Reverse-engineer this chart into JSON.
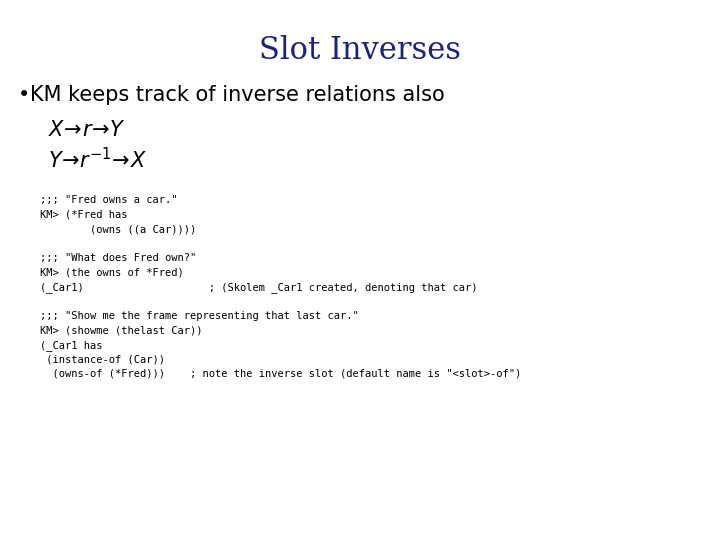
{
  "title": "Slot Inverses",
  "title_color": "#1a237e",
  "title_fontsize": 22,
  "bullet_text": "KM keeps track of inverse relations also",
  "bullet_fontsize": 15,
  "math_fontsize": 15,
  "code_block": [
    ";;; \"Fred owns a car.\"",
    "KM> (*Fred has",
    "        (owns ((a Car))))",
    "",
    ";;; \"What does Fred own?\"",
    "KM> (the owns of *Fred)",
    "(_Car1)                    ; (Skolem _Car1 created, denoting that car)",
    "",
    ";;; \"Show me the frame representing that last car.\"",
    "KM> (showme (thelast Car))",
    "(_Car1 has",
    " (instance-of (Car))",
    "  (owns-of (*Fred)))    ; note the inverse slot (default name is \"<slot>-of\")"
  ],
  "code_fontsize": 7.5,
  "background_color": "#ffffff",
  "text_color": "#000000"
}
